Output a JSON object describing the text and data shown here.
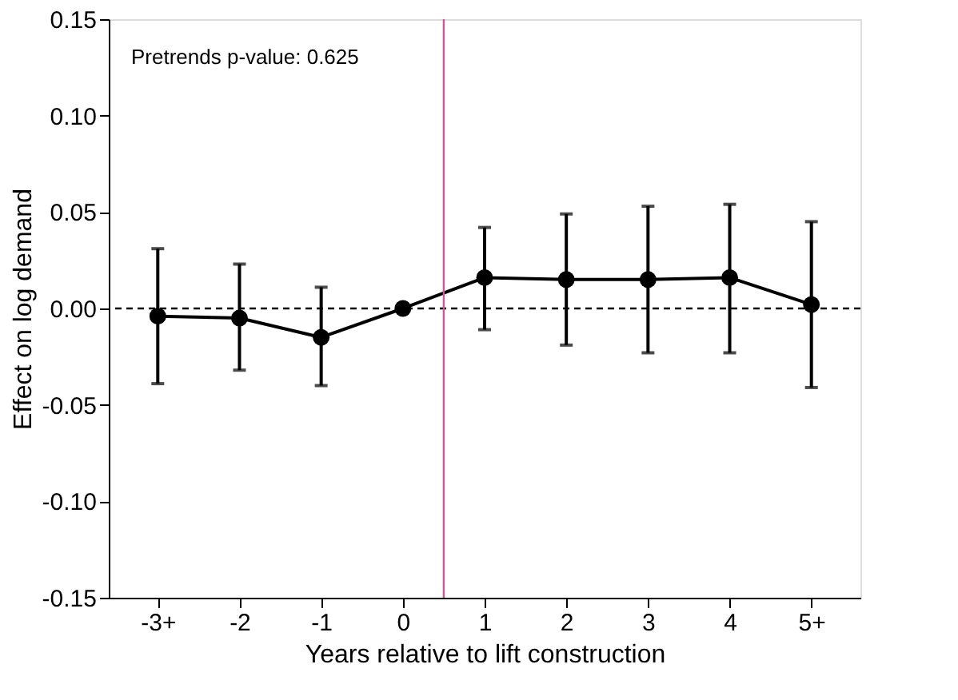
{
  "chart_data": {
    "type": "line",
    "xlabel": "Years relative to lift construction",
    "ylabel": "Effect on log demand",
    "x": [
      -3,
      -2,
      -1,
      0,
      1,
      2,
      3,
      4,
      5
    ],
    "series": [
      {
        "color": "#000000",
        "values": [
          -0.004,
          -0.005,
          -0.015,
          0,
          0.016,
          0.015,
          0.015,
          0.016,
          0.002
        ],
        "errors": [
          [
            -0.039,
            0.031
          ],
          [
            -0.032,
            0.023
          ],
          [
            -0.04,
            0.011
          ],
          null,
          [
            -0.011,
            0.042
          ],
          [
            -0.019,
            0.049
          ],
          [
            -0.023,
            0.053
          ],
          [
            -0.023,
            0.054
          ],
          [
            -0.041,
            0.045
          ]
        ]
      }
    ],
    "marker": "circle",
    "line_style": "solid",
    "xlim": [
      -3.6,
      5.6
    ],
    "xticks": [
      {
        "value": -3,
        "label": "-3+"
      },
      -2,
      -1,
      0,
      1,
      2,
      3,
      4,
      {
        "value": 5,
        "label": "5+"
      }
    ],
    "ylim": [
      -0.15,
      0.15
    ],
    "yticks": [
      {
        "value": -0.15,
        "label": "-0.15"
      },
      {
        "value": -0.1,
        "label": "-0.10"
      },
      {
        "value": -0.05,
        "label": "-0.05"
      },
      {
        "value": 0,
        "label": "0.00"
      },
      {
        "value": 0.05,
        "label": "0.05"
      },
      {
        "value": 0.1,
        "label": "0.10"
      },
      {
        "value": 0.15,
        "label": "0.15"
      }
    ],
    "ref_lines": [
      {
        "axis": "y",
        "value": 0,
        "color": "#000000",
        "line_style": "dashed"
      },
      {
        "axis": "x",
        "value": 0.5,
        "color": "#d1559b",
        "line_style": "solid"
      }
    ],
    "annotations": [
      "Pretrends p-value: 0.625"
    ]
  }
}
